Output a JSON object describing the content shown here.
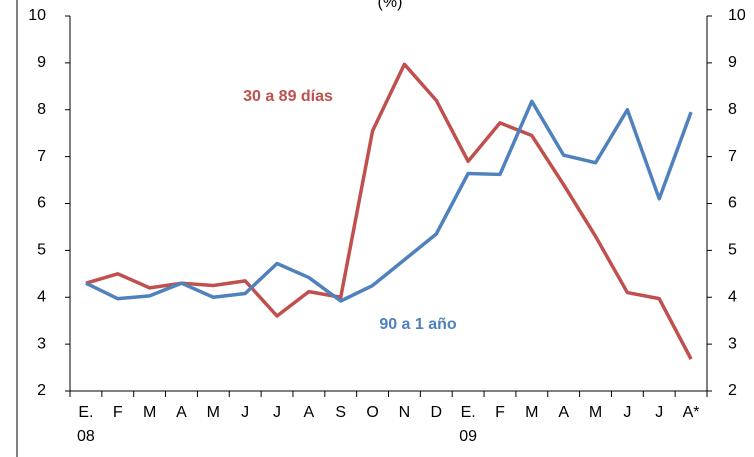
{
  "chart_data": {
    "type": "line",
    "title": "(%)",
    "categories": [
      "E.",
      "F",
      "M",
      "A",
      "M",
      "J",
      "J",
      "A",
      "S",
      "O",
      "N",
      "D",
      "E.",
      "F",
      "M",
      "A",
      "M",
      "J",
      "J",
      "A*"
    ],
    "category_years": [
      "08",
      null,
      null,
      null,
      null,
      null,
      null,
      null,
      null,
      null,
      null,
      null,
      "09",
      null,
      null,
      null,
      null,
      null,
      null,
      null
    ],
    "series": [
      {
        "name": "30 a 89 días",
        "color": "#c0504d",
        "values": [
          4.3,
          4.5,
          4.2,
          4.3,
          4.25,
          4.35,
          3.6,
          4.12,
          4.0,
          7.55,
          8.97,
          8.2,
          6.9,
          7.72,
          7.45,
          6.4,
          5.3,
          4.1,
          3.97,
          2.68
        ]
      },
      {
        "name": "90 a 1 año",
        "color": "#4f81bd",
        "values": [
          4.3,
          3.97,
          4.03,
          4.3,
          4.0,
          4.08,
          4.72,
          4.42,
          3.92,
          4.25,
          4.8,
          5.35,
          6.64,
          6.62,
          8.18,
          7.03,
          6.87,
          8.0,
          6.1,
          7.95
        ]
      }
    ],
    "ylim": [
      2,
      10
    ],
    "yticks": [
      2,
      3,
      4,
      5,
      6,
      7,
      8,
      9,
      10
    ],
    "y2lim": [
      2,
      10
    ],
    "y2ticks": [
      2,
      3,
      4,
      5,
      6,
      7,
      8,
      9,
      10
    ],
    "grid": false
  }
}
